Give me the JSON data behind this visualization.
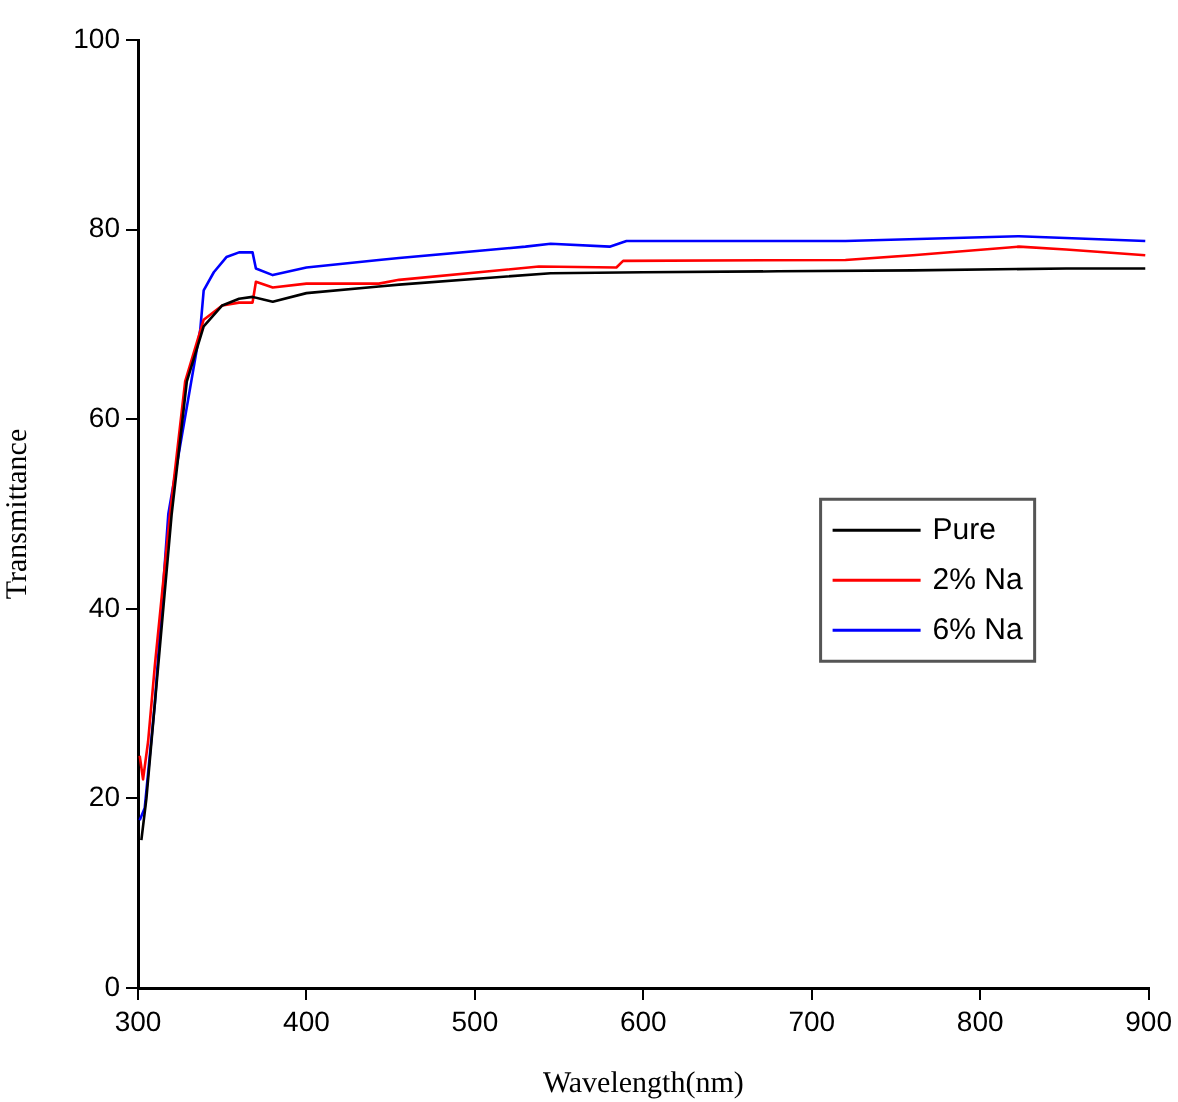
{
  "chart_data": {
    "type": "line",
    "xlabel": "Wavelength(nm)",
    "ylabel": "Transmittance",
    "xlim": [
      300,
      900
    ],
    "ylim": [
      0,
      100
    ],
    "xticks": [
      300,
      400,
      500,
      600,
      700,
      800,
      900
    ],
    "yticks": [
      0,
      20,
      40,
      60,
      80,
      100
    ],
    "grid": false,
    "legend": "right",
    "marker": "none",
    "line_style": "solid",
    "series": [
      {
        "name": "Pure",
        "color": "#000000",
        "x": [
          302,
          305,
          310,
          320,
          329,
          339,
          350,
          360,
          368,
          375,
          380,
          400,
          443,
          455,
          545,
          600,
          680,
          760,
          851,
          898
        ],
        "values": [
          15.6,
          20,
          30,
          50,
          64,
          69.8,
          72,
          72.7,
          72.9,
          72.6,
          72.4,
          73.3,
          74,
          74.2,
          75.4,
          75.5,
          75.6,
          75.7,
          75.9,
          75.9
        ]
      },
      {
        "name": "2% Na",
        "color": "#ff0000",
        "x": [
          301,
          303,
          306,
          310,
          319,
          328,
          339,
          350,
          360,
          368,
          370,
          380,
          400,
          443,
          455,
          538,
          584,
          588,
          720,
          760,
          823,
          851,
          898
        ],
        "values": [
          24.5,
          22,
          26,
          34,
          50,
          64,
          70.5,
          72,
          72.3,
          72.3,
          74.5,
          73.9,
          74.3,
          74.3,
          74.7,
          76.1,
          76,
          76.7,
          76.8,
          77.3,
          78.2,
          77.9,
          77.3
        ]
      },
      {
        "name": "6% Na",
        "color": "#0000ff",
        "x": [
          301,
          304,
          310,
          318,
          337,
          339,
          345,
          352.5,
          360,
          368,
          370,
          380,
          400,
          443,
          455,
          530,
          545,
          580,
          590,
          720,
          823,
          898
        ],
        "values": [
          17.7,
          19,
          30,
          50,
          69.5,
          73.6,
          75.5,
          77.1,
          77.6,
          77.6,
          75.9,
          75.2,
          76,
          76.8,
          77,
          78.2,
          78.5,
          78.2,
          78.8,
          78.8,
          79.3,
          78.8
        ]
      }
    ]
  }
}
